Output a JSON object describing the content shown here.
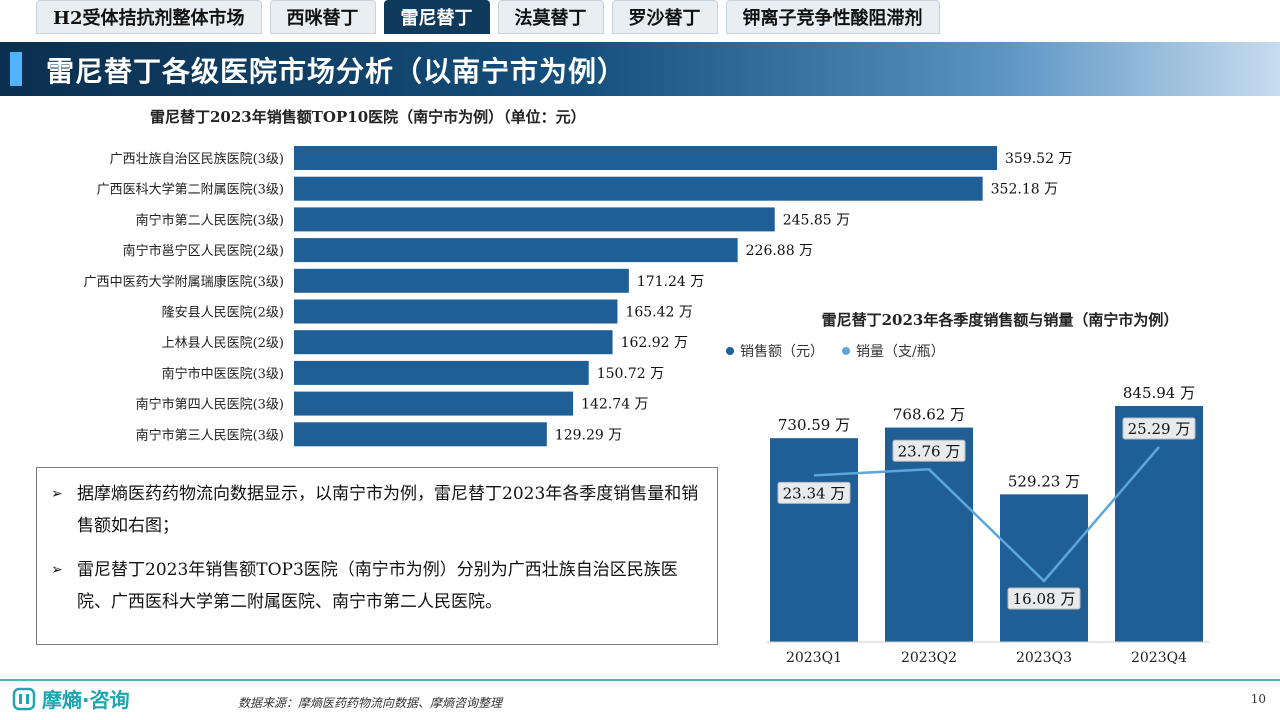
{
  "tabs": [
    {
      "label": "H2受体拮抗剂整体市场",
      "active": false
    },
    {
      "label": "西咪替丁",
      "active": false
    },
    {
      "label": "雷尼替丁",
      "active": true
    },
    {
      "label": "法莫替丁",
      "active": false
    },
    {
      "label": "罗沙替丁",
      "active": false
    },
    {
      "label": "钾离子竞争性酸阻滞剂",
      "active": false
    }
  ],
  "page_title": "雷尼替丁各级医院市场分析（以南宁市为例）",
  "summary": {
    "bullets": [
      "据摩熵医药药物流向数据显示，以南宁市为例，雷尼替丁2023年各季度销售量和销售额如右图；",
      "雷尼替丁2023年销售额TOP3医院（南宁市为例）分别为广西壮族自治区民族医院、广西医科大学第二附属医院、南宁市第二人民医院。"
    ]
  },
  "chart_data": [
    {
      "type": "bar",
      "orientation": "horizontal",
      "title": "雷尼替丁2023年销售额TOP10医院（南宁市为例）（单位：元）",
      "categories": [
        "广西壮族自治区民族医院(3级)",
        "广西医科大学第二附属医院(3级)",
        "南宁市第二人民医院(3级)",
        "南宁市邕宁区人民医院(2级)",
        "广西中医药大学附属瑞康医院(3级)",
        "隆安县人民医院(2级)",
        "上林县人民医院(2级)",
        "南宁市中医医院(3级)",
        "南宁市第四人民医院(3级)",
        "南宁市第三人民医院(3级)"
      ],
      "values": [
        359.52,
        352.18,
        245.85,
        226.88,
        171.24,
        165.42,
        162.92,
        150.72,
        142.74,
        129.29
      ],
      "value_labels": [
        "359.52 万",
        "352.18 万",
        "245.85 万",
        "226.88 万",
        "171.24 万",
        "165.42 万",
        "162.92 万",
        "150.72 万",
        "142.74 万",
        "129.29 万"
      ],
      "unit": "万",
      "color": "#1f5f96"
    },
    {
      "type": "bar",
      "title": "雷尼替丁2023年各季度销售额与销量（南宁市为例）",
      "categories": [
        "2023Q1",
        "2023Q2",
        "2023Q3",
        "2023Q4"
      ],
      "series": [
        {
          "name": "销售额（元）",
          "type": "bar",
          "values": [
            730.59,
            768.62,
            529.23,
            845.94
          ],
          "labels": [
            "730.59 万",
            "768.62 万",
            "529.23 万",
            "845.94 万"
          ],
          "color": "#1f5f96"
        },
        {
          "name": "销量（支/瓶）",
          "type": "line",
          "values": [
            23.34,
            23.76,
            16.08,
            25.29
          ],
          "labels": [
            "23.34 万",
            "23.76 万",
            "16.08 万",
            "25.29 万"
          ],
          "color": "#5ba6dc"
        }
      ],
      "legend_position": "top-left"
    }
  ],
  "footer": {
    "logo_text": "摩熵·咨询",
    "source": "数据来源：摩熵医药药物流向数据、摩熵咨询整理",
    "page_number": "10"
  }
}
